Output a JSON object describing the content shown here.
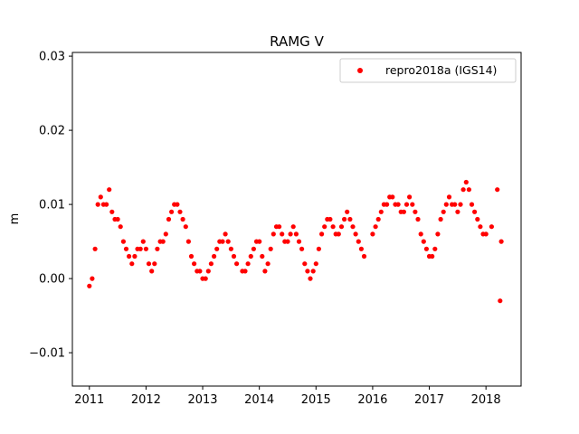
{
  "chart_data": {
    "type": "scatter",
    "title": "RAMG V",
    "xlabel": "",
    "ylabel": "m",
    "xlim": [
      2010.7,
      2018.62
    ],
    "ylim": [
      -0.0145,
      0.0305
    ],
    "x_ticks": [
      2011,
      2012,
      2013,
      2014,
      2015,
      2016,
      2017,
      2018
    ],
    "x_tick_labels": [
      "2011",
      "2012",
      "2013",
      "2014",
      "2015",
      "2016",
      "2017",
      "2018"
    ],
    "y_ticks": [
      -0.01,
      0.0,
      0.01,
      0.02,
      0.03
    ],
    "y_tick_labels": [
      "−0.01",
      "0.00",
      "0.01",
      "0.02",
      "0.03"
    ],
    "grid": false,
    "legend_position": "top-right",
    "series": [
      {
        "name": "repro2018a (IGS14)",
        "color": "#ff0000",
        "marker": "circle",
        "x": [
          2011.0,
          2011.05,
          2011.1,
          2011.15,
          2011.2,
          2011.25,
          2011.3,
          2011.35,
          2011.4,
          2011.45,
          2011.5,
          2011.55,
          2011.6,
          2011.65,
          2011.7,
          2011.75,
          2011.8,
          2011.85,
          2011.9,
          2011.95,
          2012.0,
          2012.05,
          2012.1,
          2012.15,
          2012.2,
          2012.25,
          2012.3,
          2012.35,
          2012.4,
          2012.45,
          2012.5,
          2012.55,
          2012.6,
          2012.65,
          2012.7,
          2012.75,
          2012.8,
          2012.85,
          2012.9,
          2012.95,
          2013.0,
          2013.05,
          2013.1,
          2013.15,
          2013.2,
          2013.25,
          2013.3,
          2013.35,
          2013.4,
          2013.45,
          2013.5,
          2013.55,
          2013.6,
          2013.7,
          2013.75,
          2013.8,
          2013.85,
          2013.9,
          2013.95,
          2014.0,
          2014.05,
          2014.1,
          2014.15,
          2014.2,
          2014.25,
          2014.3,
          2014.35,
          2014.4,
          2014.45,
          2014.5,
          2014.55,
          2014.6,
          2014.65,
          2014.7,
          2014.75,
          2014.8,
          2014.85,
          2014.9,
          2014.95,
          2015.0,
          2015.05,
          2015.1,
          2015.15,
          2015.2,
          2015.25,
          2015.3,
          2015.35,
          2015.4,
          2015.45,
          2015.5,
          2015.55,
          2015.6,
          2015.65,
          2015.7,
          2015.75,
          2015.8,
          2015.85,
          2016.0,
          2016.05,
          2016.1,
          2016.15,
          2016.2,
          2016.25,
          2016.3,
          2016.35,
          2016.4,
          2016.45,
          2016.5,
          2016.55,
          2016.6,
          2016.65,
          2016.7,
          2016.75,
          2016.8,
          2016.85,
          2016.9,
          2016.95,
          2017.0,
          2017.05,
          2017.1,
          2017.15,
          2017.2,
          2017.25,
          2017.3,
          2017.35,
          2017.4,
          2017.45,
          2017.5,
          2017.55,
          2017.6,
          2017.65,
          2017.7,
          2017.75,
          2017.8,
          2017.85,
          2017.9,
          2017.95,
          2018.0,
          2018.1,
          2018.2,
          2018.25,
          2018.27
        ],
        "y": [
          -0.001,
          0.0,
          0.004,
          0.01,
          0.011,
          0.01,
          0.01,
          0.012,
          0.009,
          0.008,
          0.008,
          0.007,
          0.005,
          0.004,
          0.003,
          0.002,
          0.003,
          0.004,
          0.004,
          0.005,
          0.004,
          0.002,
          0.001,
          0.002,
          0.004,
          0.005,
          0.005,
          0.006,
          0.008,
          0.009,
          0.01,
          0.01,
          0.009,
          0.008,
          0.007,
          0.005,
          0.003,
          0.002,
          0.001,
          0.001,
          0.0,
          0.0,
          0.001,
          0.002,
          0.003,
          0.004,
          0.005,
          0.005,
          0.006,
          0.005,
          0.004,
          0.003,
          0.002,
          0.001,
          0.001,
          0.002,
          0.003,
          0.004,
          0.005,
          0.005,
          0.003,
          0.001,
          0.002,
          0.004,
          0.006,
          0.007,
          0.007,
          0.006,
          0.005,
          0.005,
          0.006,
          0.007,
          0.006,
          0.005,
          0.004,
          0.002,
          0.001,
          0.0,
          0.001,
          0.002,
          0.004,
          0.006,
          0.007,
          0.008,
          0.008,
          0.007,
          0.006,
          0.006,
          0.007,
          0.008,
          0.009,
          0.008,
          0.007,
          0.006,
          0.005,
          0.004,
          0.003,
          0.006,
          0.007,
          0.008,
          0.009,
          0.01,
          0.01,
          0.011,
          0.011,
          0.01,
          0.01,
          0.009,
          0.009,
          0.01,
          0.011,
          0.01,
          0.009,
          0.008,
          0.006,
          0.005,
          0.004,
          0.003,
          0.003,
          0.004,
          0.006,
          0.008,
          0.009,
          0.01,
          0.011,
          0.01,
          0.01,
          0.009,
          0.01,
          0.012,
          0.013,
          0.012,
          0.01,
          0.009,
          0.008,
          0.007,
          0.006,
          0.006,
          0.007,
          0.012,
          -0.003,
          0.005
        ]
      }
    ]
  }
}
